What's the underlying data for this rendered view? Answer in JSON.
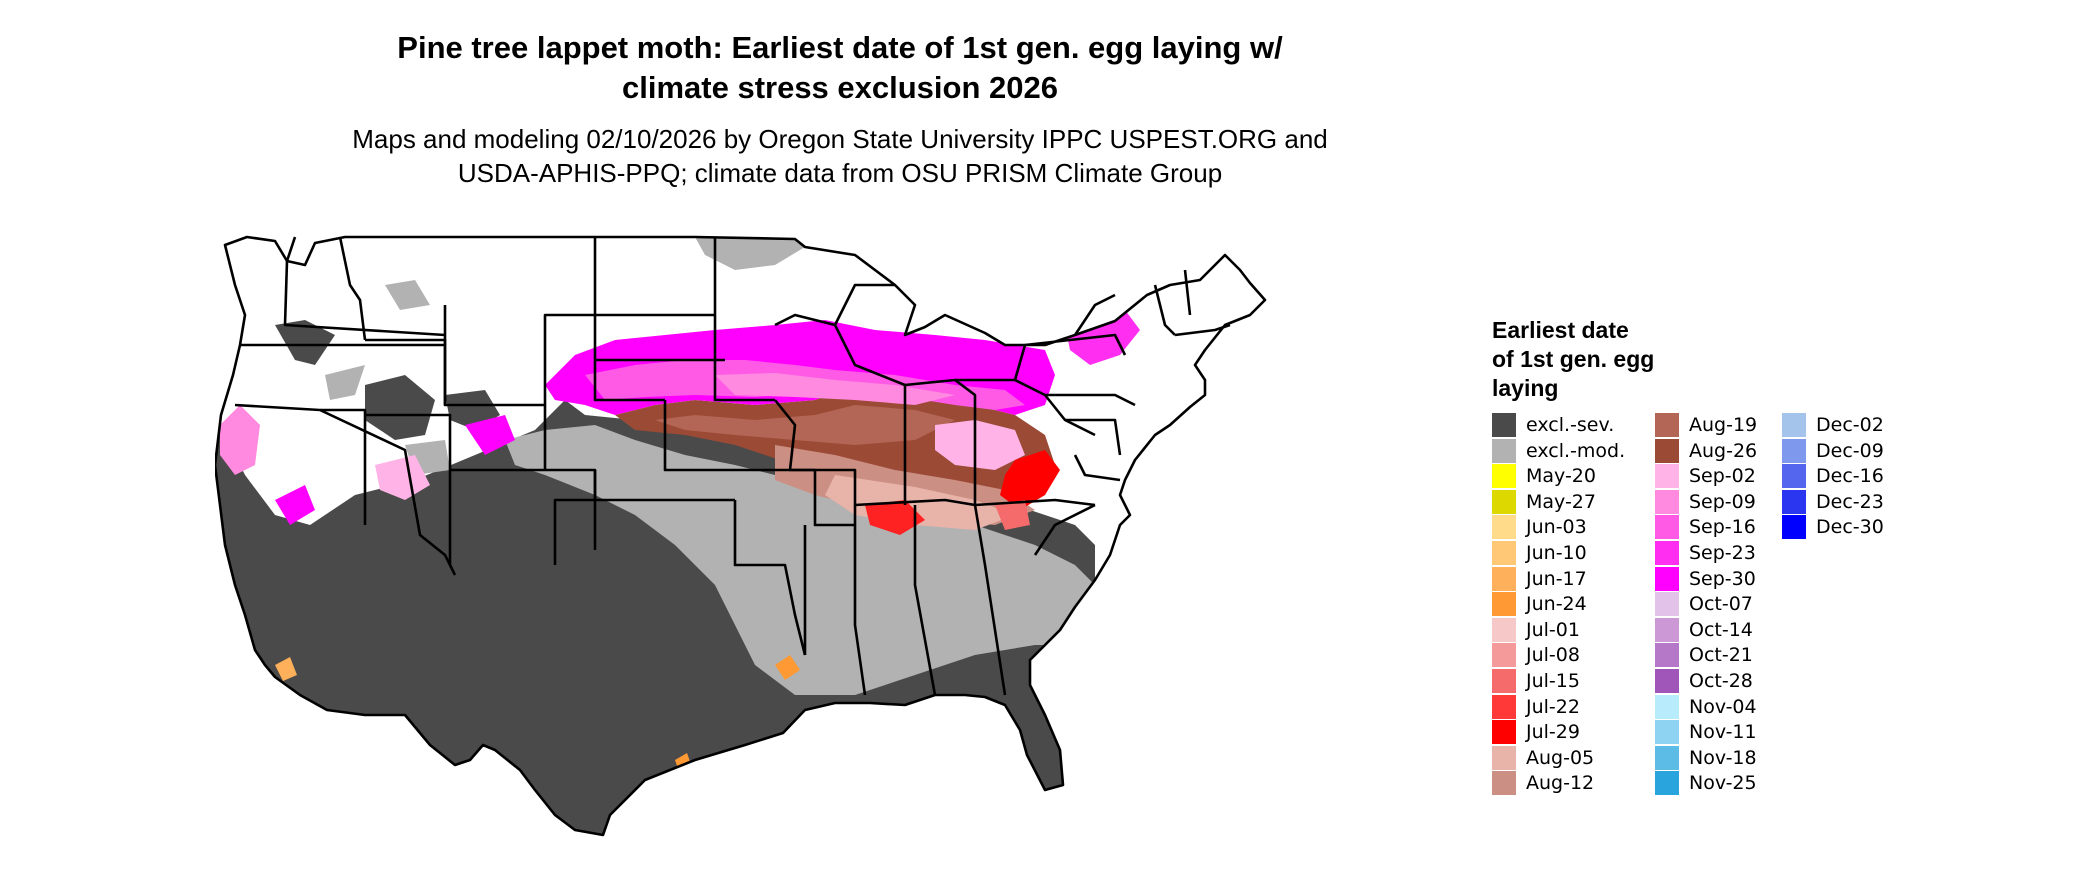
{
  "title_line1": "Pine tree lappet moth: Earliest date of 1st gen. egg laying w/",
  "title_line2": "climate stress exclusion 2026",
  "subtitle_line1": "Maps and modeling 02/10/2026 by Oregon State University IPPC USPEST.ORG and",
  "subtitle_line2": "USDA-APHIS-PPQ; climate data from OSU PRISM Climate Group",
  "legend": {
    "title_line1": "Earliest date",
    "title_line2": "of 1st gen. egg",
    "title_line3": "laying",
    "columns": [
      [
        {
          "label": "excl.-sev.",
          "color": "#4a4a4a"
        },
        {
          "label": "excl.-mod.",
          "color": "#b2b2b2"
        },
        {
          "label": "May-20",
          "color": "#ffff00"
        },
        {
          "label": "May-27",
          "color": "#dcd800"
        },
        {
          "label": "Jun-03",
          "color": "#ffdb8a"
        },
        {
          "label": "Jun-10",
          "color": "#ffc877"
        },
        {
          "label": "Jun-17",
          "color": "#ffb05a"
        },
        {
          "label": "Jun-24",
          "color": "#ff9933"
        },
        {
          "label": "Jul-01",
          "color": "#f6c8c8"
        },
        {
          "label": "Jul-08",
          "color": "#f59a9a"
        },
        {
          "label": "Jul-15",
          "color": "#f56a6a"
        },
        {
          "label": "Jul-22",
          "color": "#ff3838"
        },
        {
          "label": "Jul-29",
          "color": "#ff0000"
        },
        {
          "label": "Aug-05",
          "color": "#e8b4aa"
        },
        {
          "label": "Aug-12",
          "color": "#cc8f84"
        }
      ],
      [
        {
          "label": "Aug-19",
          "color": "#b36655"
        },
        {
          "label": "Aug-26",
          "color": "#9b4a36"
        },
        {
          "label": "Sep-02",
          "color": "#ffb3e6"
        },
        {
          "label": "Sep-09",
          "color": "#ff8ae0"
        },
        {
          "label": "Sep-16",
          "color": "#ff5ae6"
        },
        {
          "label": "Sep-23",
          "color": "#ff2ef0"
        },
        {
          "label": "Sep-30",
          "color": "#ff00ff"
        },
        {
          "label": "Oct-07",
          "color": "#e2c2e8"
        },
        {
          "label": "Oct-14",
          "color": "#cc99d6"
        },
        {
          "label": "Oct-21",
          "color": "#b577c8"
        },
        {
          "label": "Oct-28",
          "color": "#a055b8"
        },
        {
          "label": "Nov-04",
          "color": "#b8ecfc"
        },
        {
          "label": "Nov-11",
          "color": "#8ed4f2"
        },
        {
          "label": "Nov-18",
          "color": "#5cbce6"
        },
        {
          "label": "Nov-25",
          "color": "#2aa4dc"
        }
      ],
      [
        {
          "label": "Dec-02",
          "color": "#a4c4ec"
        },
        {
          "label": "Dec-09",
          "color": "#7d98ec"
        },
        {
          "label": "Dec-16",
          "color": "#5566ee"
        },
        {
          "label": "Dec-23",
          "color": "#2b36f0"
        },
        {
          "label": "Dec-30",
          "color": "#0000ff"
        }
      ]
    ]
  }
}
